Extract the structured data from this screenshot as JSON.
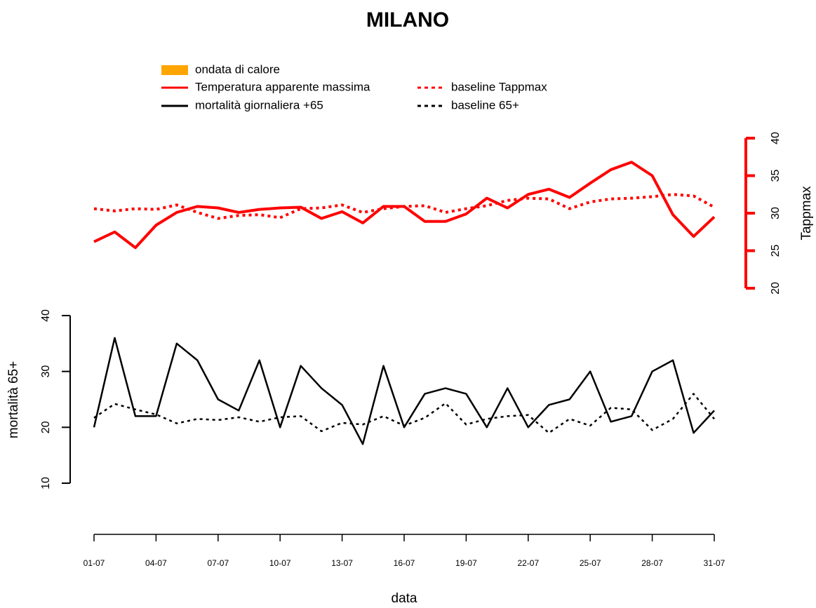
{
  "chart_data": {
    "type": "line",
    "title": "MILANO",
    "x_label": "data",
    "y_label": "mortalità 65+",
    "y2_label": "Tappmax",
    "categories": [
      "01-07",
      null,
      null,
      "04-07",
      null,
      null,
      "07-07",
      null,
      null,
      "10-07",
      null,
      null,
      "13-07",
      null,
      null,
      "16-07",
      null,
      null,
      "19-07",
      null,
      null,
      "22-07",
      null,
      null,
      "25-07",
      null,
      null,
      "28-07",
      null,
      null,
      "31-07"
    ],
    "legend_extra": [
      {
        "name": "ondata di calore",
        "color": "#ffa500"
      }
    ],
    "series": [
      {
        "name": "Temperatura apparente massima",
        "color": "#ff0000",
        "dash": false,
        "axis": "y2",
        "values": [
          26.2,
          27.5,
          25.4,
          28.4,
          30.1,
          30.9,
          30.7,
          30.1,
          30.5,
          30.7,
          30.8,
          29.3,
          30.2,
          28.7,
          30.9,
          30.9,
          28.9,
          28.9,
          29.9,
          32,
          30.7,
          32.5,
          33.2,
          32.1,
          34,
          35.8,
          36.8,
          35,
          29.8,
          26.9,
          29.5
        ]
      },
      {
        "name": "baseline Tappmax",
        "color": "#ff0000",
        "dash": true,
        "axis": "y2",
        "values": [
          30.6,
          30.3,
          30.6,
          30.5,
          31.1,
          30.1,
          29.3,
          29.7,
          29.8,
          29.4,
          30.6,
          30.7,
          31.1,
          30.1,
          30.6,
          30.9,
          31,
          30.1,
          30.6,
          31,
          31.7,
          32,
          31.9,
          30.6,
          31.5,
          31.9,
          32,
          32.2,
          32.5,
          32.3,
          30.8
        ]
      },
      {
        "name": "mortalità giornaliera +65",
        "color": "#000000",
        "dash": false,
        "axis": "y",
        "values": [
          20,
          36,
          22,
          22,
          35,
          32,
          25,
          23,
          32,
          20,
          31,
          27,
          24,
          17,
          31,
          20,
          26,
          27,
          26,
          20,
          27,
          20,
          24,
          25,
          30,
          21,
          22,
          30,
          32,
          19,
          23
        ]
      },
      {
        "name": "baseline 65+",
        "color": "#000000",
        "dash": true,
        "axis": "y",
        "values": [
          21.7,
          24.2,
          23.2,
          22.3,
          20.7,
          21.5,
          21.3,
          21.8,
          21,
          21.8,
          22,
          19.3,
          20.8,
          20.5,
          22,
          20.3,
          21.7,
          24.3,
          20.5,
          21.5,
          22,
          22.2,
          19,
          21.5,
          20.3,
          23.5,
          23.2,
          19.5,
          21.5,
          26,
          21.5
        ]
      }
    ],
    "ylim": [
      10,
      40
    ],
    "yticks": [
      10,
      20,
      30,
      40
    ],
    "y2lim": [
      20,
      40
    ],
    "y2ticks": [
      20,
      25,
      30,
      35,
      40
    ]
  }
}
